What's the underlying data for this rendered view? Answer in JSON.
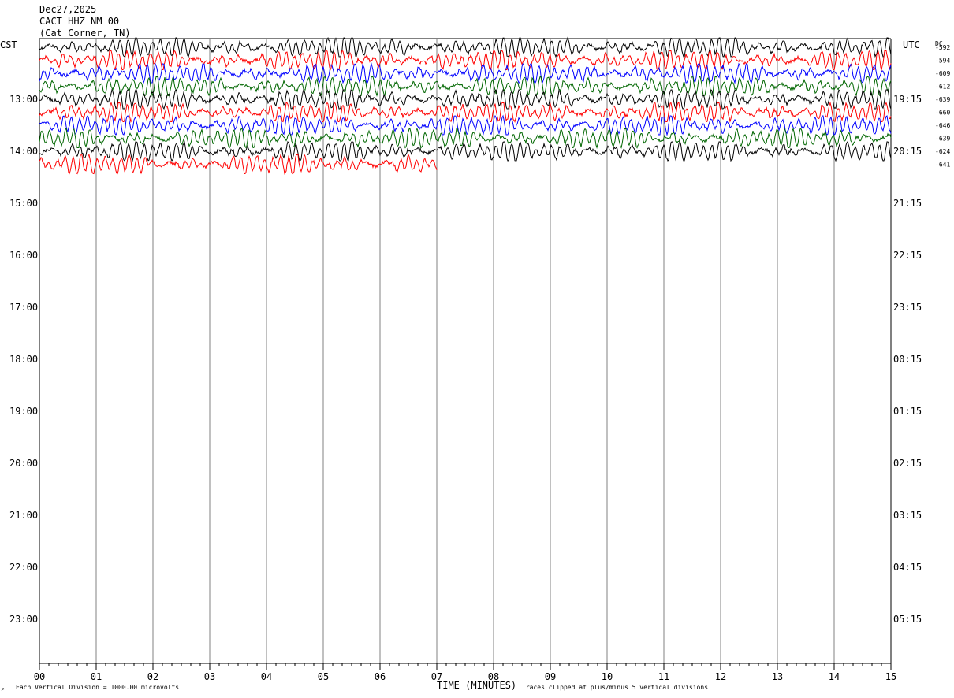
{
  "header": {
    "date": "Dec27,2025",
    "station": "CACT HHZ NM 00",
    "location": "(Cat Corner, TN)",
    "left_tz": "CST",
    "right_tz": "UTC",
    "dc_label": "DC"
  },
  "footer": {
    "scale_note": "Each Vertical Division = 1000.00 microvolts",
    "xlabel": "TIME (MINUTES)",
    "clip_note": "Traces clipped at plus/minus 5 vertical divisions",
    "corner_mark": "↗"
  },
  "chart_data": {
    "type": "line",
    "title": "CACT HHZ NM 00",
    "xlabel": "TIME (MINUTES)",
    "x_range": [
      0,
      15
    ],
    "x_ticks": [
      "00",
      "01",
      "02",
      "03",
      "04",
      "05",
      "06",
      "07",
      "08",
      "09",
      "10",
      "11",
      "12",
      "13",
      "14",
      "15"
    ],
    "left_hour_labels": [
      "13:00",
      "14:00",
      "15:00",
      "16:00",
      "17:00",
      "18:00",
      "19:00",
      "20:00",
      "21:00",
      "22:00",
      "23:00"
    ],
    "right_hour_labels": [
      "19:15",
      "20:15",
      "21:15",
      "22:15",
      "23:15",
      "00:15",
      "01:15",
      "02:15",
      "03:15",
      "04:15",
      "05:15"
    ],
    "trace_colors": [
      "#000000",
      "#ff0000",
      "#0000ff",
      "#006600"
    ],
    "dc_offsets": [
      "-592",
      "-594",
      "-609",
      "-612",
      "-639",
      "-660",
      "-646",
      "-639",
      "-624",
      "-641"
    ],
    "traces_plotted": 10,
    "last_trace_end_minute": 7.0,
    "grid": true
  }
}
